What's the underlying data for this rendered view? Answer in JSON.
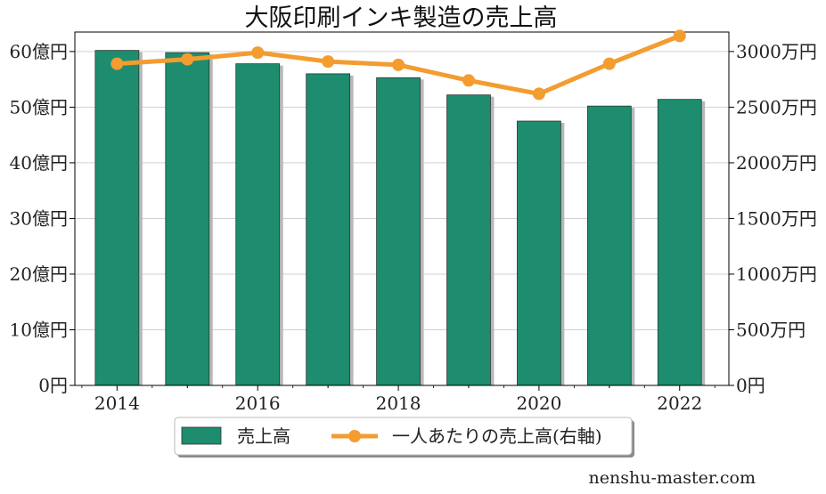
{
  "chart_data": {
    "type": "bar",
    "title": "大阪印刷インキ製造の売上高",
    "x": [
      2014,
      2015,
      2016,
      2017,
      2018,
      2019,
      2020,
      2021,
      2022
    ],
    "x_ticks": [
      "2014",
      "2016",
      "2018",
      "2020",
      "2022"
    ],
    "series": [
      {
        "name": "売上高",
        "type": "bar",
        "axis": "left",
        "color": "#1e8c6e",
        "values": [
          60.2,
          59.8,
          57.8,
          56.0,
          55.3,
          52.2,
          47.5,
          50.2,
          51.4
        ],
        "unit": "億円"
      },
      {
        "name": "一人あたりの売上高(右軸)",
        "type": "line",
        "axis": "right",
        "color": "#f39c30",
        "values": [
          2890,
          2930,
          2990,
          2910,
          2880,
          2740,
          2620,
          2890,
          3140
        ],
        "unit": "万円"
      }
    ],
    "y_left": {
      "lim": [
        0,
        63.5
      ],
      "ticks": [
        0,
        10,
        20,
        30,
        40,
        50,
        60
      ],
      "labels": [
        "0円",
        "10億円",
        "20億円",
        "30億円",
        "40億円",
        "50億円",
        "60億円"
      ]
    },
    "y_right": {
      "lim": [
        0,
        3175
      ],
      "ticks": [
        0,
        500,
        1000,
        1500,
        2000,
        2500,
        3000
      ],
      "labels": [
        "0円",
        "500万円",
        "1000万円",
        "1500万円",
        "2000万円",
        "2500万円",
        "3000万円"
      ]
    },
    "grid": true,
    "legend_position": "bottom"
  },
  "watermark": "nenshu-master.com"
}
